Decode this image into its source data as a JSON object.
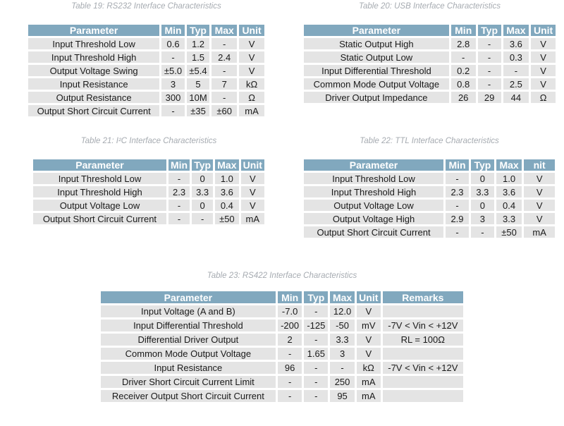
{
  "colors": {
    "header_bg": "#81a8be",
    "header_text": "#ffffff",
    "row_bg": "#e4e4e4",
    "cell_text": "#1a1a1a",
    "caption_text": "#a6abb1"
  },
  "tables": [
    {
      "caption": "Table 19: RS232 Interface Characteristics",
      "headers": [
        "Parameter",
        "Min",
        "Typ",
        "Max",
        "Unit"
      ],
      "rows": [
        [
          "Input Threshold Low",
          "0.6",
          "1.2",
          "-",
          "V"
        ],
        [
          "Input Threshold High",
          "-",
          "1.5",
          "2.4",
          "V"
        ],
        [
          "Output Voltage Swing",
          "±5.0",
          "±5.4",
          "-",
          "V"
        ],
        [
          "Input Resistance",
          "3",
          "5",
          "7",
          "kΩ"
        ],
        [
          "Output Resistance",
          "300",
          "10M",
          "-",
          "Ω"
        ],
        [
          "Output Short Circuit Current",
          "-",
          "±35",
          "±60",
          "mA"
        ]
      ]
    },
    {
      "caption": "Table 20: USB Interface Characteristics",
      "headers": [
        "Parameter",
        "Min",
        "Typ",
        "Max",
        "Unit"
      ],
      "rows": [
        [
          "Static Output High",
          "2.8",
          "-",
          "3.6",
          "V"
        ],
        [
          "Static Output Low",
          "-",
          "-",
          "0.3",
          "V"
        ],
        [
          "Input Differential Threshold",
          "0.2",
          "-",
          "-",
          "V"
        ],
        [
          "Common Mode Output Voltage",
          "0.8",
          "-",
          "2.5",
          "V"
        ],
        [
          "Driver Output Impedance",
          "26",
          "29",
          "44",
          "Ω"
        ]
      ]
    },
    {
      "caption": "Table 21: I²C Interface Characteristics",
      "headers": [
        "Parameter",
        "Min",
        "Typ",
        "Max",
        "Unit"
      ],
      "rows": [
        [
          "Input Threshold Low",
          "-",
          "0",
          "1.0",
          "V"
        ],
        [
          "Input Threshold High",
          "2.3",
          "3.3",
          "3.6",
          "V"
        ],
        [
          "Output Voltage Low",
          "-",
          "0",
          "0.4",
          "V"
        ],
        [
          "Output Short Circuit Current",
          "-",
          "-",
          "±50",
          "mA"
        ]
      ]
    },
    {
      "caption": "Table 22: TTL Interface Characteristics",
      "headers": [
        "Parameter",
        "Min",
        "Typ",
        "Max",
        "nit"
      ],
      "rows": [
        [
          "Input Threshold Low",
          "-",
          "0",
          "1.0",
          "V"
        ],
        [
          "Input Threshold High",
          "2.3",
          "3.3",
          "3.6",
          "V"
        ],
        [
          "Output Voltage Low",
          "-",
          "0",
          "0.4",
          "V"
        ],
        [
          "Output Voltage High",
          "2.9",
          "3",
          "3.3",
          "V"
        ],
        [
          "Output Short Circuit Current",
          "-",
          "-",
          "±50",
          "mA"
        ]
      ]
    },
    {
      "caption": "Table 23: RS422 Interface Characteristics",
      "headers": [
        "Parameter",
        "Min",
        "Typ",
        "Max",
        "Unit",
        "Remarks"
      ],
      "rows": [
        [
          "Input Voltage (A and B)",
          "-7.0",
          "-",
          "12.0",
          "V",
          ""
        ],
        [
          "Input Differential Threshold",
          "-200",
          "-125",
          "-50",
          "mV",
          "-7V < Vin < +12V"
        ],
        [
          "Differential Driver Output",
          "2",
          "-",
          "3.3",
          "V",
          "RL = 100Ω"
        ],
        [
          "Common Mode Output Voltage",
          "-",
          "1.65",
          "3",
          "V",
          ""
        ],
        [
          "Input Resistance",
          "96",
          "-",
          "-",
          "kΩ",
          "-7V < Vin < +12V"
        ],
        [
          "Driver Short Circuit Current Limit",
          "-",
          "-",
          "250",
          "mA",
          ""
        ],
        [
          "Receiver Output Short Circuit Current",
          "-",
          "-",
          "95",
          "mA",
          ""
        ]
      ]
    }
  ]
}
